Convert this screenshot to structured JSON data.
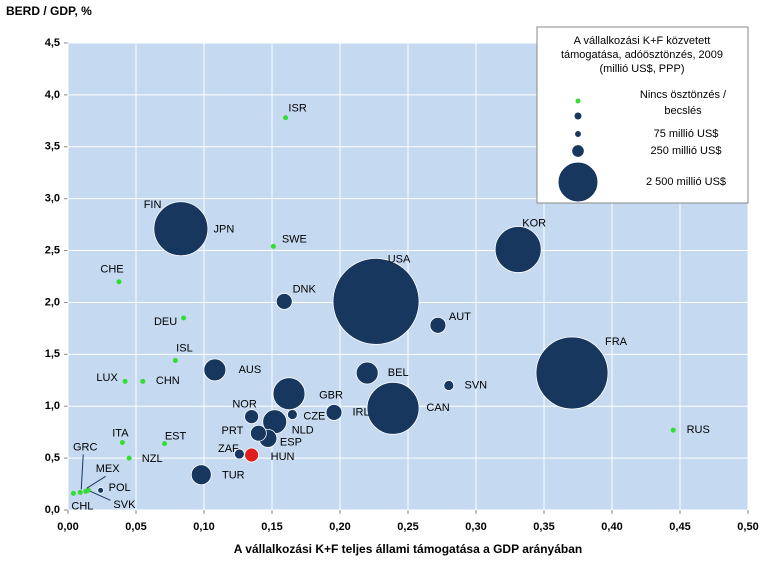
{
  "chart_data": {
    "type": "bubble",
    "y_title": "BERD / GDP, %",
    "x_title": "A vállalkozási K+F teljes állami támogatása a GDP arányában",
    "xlim": [
      0,
      0.5
    ],
    "ylim": [
      0,
      4.5
    ],
    "xticks": [
      {
        "value": 0,
        "label": "0,00"
      },
      {
        "value": 0.05,
        "label": "0,05"
      },
      {
        "value": 0.1,
        "label": "0,10"
      },
      {
        "value": 0.15,
        "label": "0,15"
      },
      {
        "value": 0.2,
        "label": "0,20"
      },
      {
        "value": 0.25,
        "label": "0,25"
      },
      {
        "value": 0.3,
        "label": "0,30"
      },
      {
        "value": 0.35,
        "label": "0,35"
      },
      {
        "value": 0.4,
        "label": "0,40"
      },
      {
        "value": 0.45,
        "label": "0,45"
      },
      {
        "value": 0.5,
        "label": "0,50"
      }
    ],
    "yticks": [
      {
        "value": 0,
        "label": "0,0"
      },
      {
        "value": 0.5,
        "label": "0,5"
      },
      {
        "value": 1,
        "label": "1,0"
      },
      {
        "value": 1.5,
        "label": "1,5"
      },
      {
        "value": 2,
        "label": "2,0"
      },
      {
        "value": 2.5,
        "label": "2,5"
      },
      {
        "value": 3,
        "label": "3,0"
      },
      {
        "value": 3.5,
        "label": "3,5"
      },
      {
        "value": 4,
        "label": "4,0"
      },
      {
        "value": 4.5,
        "label": "4,5"
      }
    ],
    "grid": true,
    "series": [
      {
        "color": "#33dd33",
        "categories": [
          "ISR",
          "FIN",
          "SWE",
          "CHE",
          "DEU",
          "ISL",
          "LUX",
          "CHN",
          "ITA",
          "EST",
          "NZL",
          "RUS",
          "GRC",
          "MEX",
          "CHL",
          "SVK"
        ],
        "x": [
          0.16,
          0.071,
          0.151,
          0.0375,
          0.085,
          0.079,
          0.042,
          0.055,
          0.04,
          0.071,
          0.045,
          0.445,
          0.009,
          0.013,
          0.004,
          0.015
        ],
        "values": [
          3.78,
          2.83,
          2.54,
          2.2,
          1.85,
          1.44,
          1.24,
          1.24,
          0.65,
          0.64,
          0.5,
          0.77,
          0.17,
          0.18,
          0.16,
          0.19
        ]
      },
      {
        "color": "#17375e",
        "categories": [
          "JPN",
          "KOR",
          "DNK",
          "USA",
          "AUT",
          "FRA",
          "AUS",
          "BEL",
          "SVN",
          "GBR",
          "IRL",
          "CAN",
          "NOR",
          "CZE",
          "NLD",
          "PRT",
          "ESP",
          "ZAF",
          "TUR",
          "POL"
        ],
        "x": [
          0.083,
          0.331,
          0.159,
          0.2265,
          0.272,
          0.3706,
          0.108,
          0.22,
          0.28,
          0.1625,
          0.1956,
          0.239,
          0.135,
          0.165,
          0.152,
          0.14,
          0.147,
          0.126,
          0.098,
          0.024
        ],
        "values": [
          2.71,
          2.51,
          2.01,
          2.01,
          1.78,
          1.32,
          1.35,
          1.32,
          1.2,
          1.12,
          0.94,
          0.98,
          0.9,
          0.92,
          0.85,
          0.74,
          0.69,
          0.54,
          0.34,
          0.19
        ],
        "sizes": [
          1488,
          1080,
          130,
          3773,
          130,
          2645,
          247,
          247,
          51,
          522,
          130,
          1380,
          100,
          51,
          294,
          130,
          165,
          51,
          204,
          18
        ]
      },
      {
        "color": "#e02020",
        "categories": [
          "HUN"
        ],
        "x": [
          0.135
        ],
        "values": [
          0.53
        ],
        "sizes": [
          100
        ]
      }
    ],
    "legend": {
      "title": [
        "A vállalkozási K+F közvetett",
        "támogatása, adóösztönzés, 2009",
        "(millió US$, PPP)"
      ],
      "no_incentive": [
        "Nincs ösztönzés /",
        "becslés"
      ],
      "entries": [
        {
          "label": "75 millió US$",
          "size": 75
        },
        {
          "label": "250 millió  US$",
          "size": 250
        },
        {
          "label": "2 500 millió  US$",
          "size": 2500
        }
      ]
    }
  }
}
